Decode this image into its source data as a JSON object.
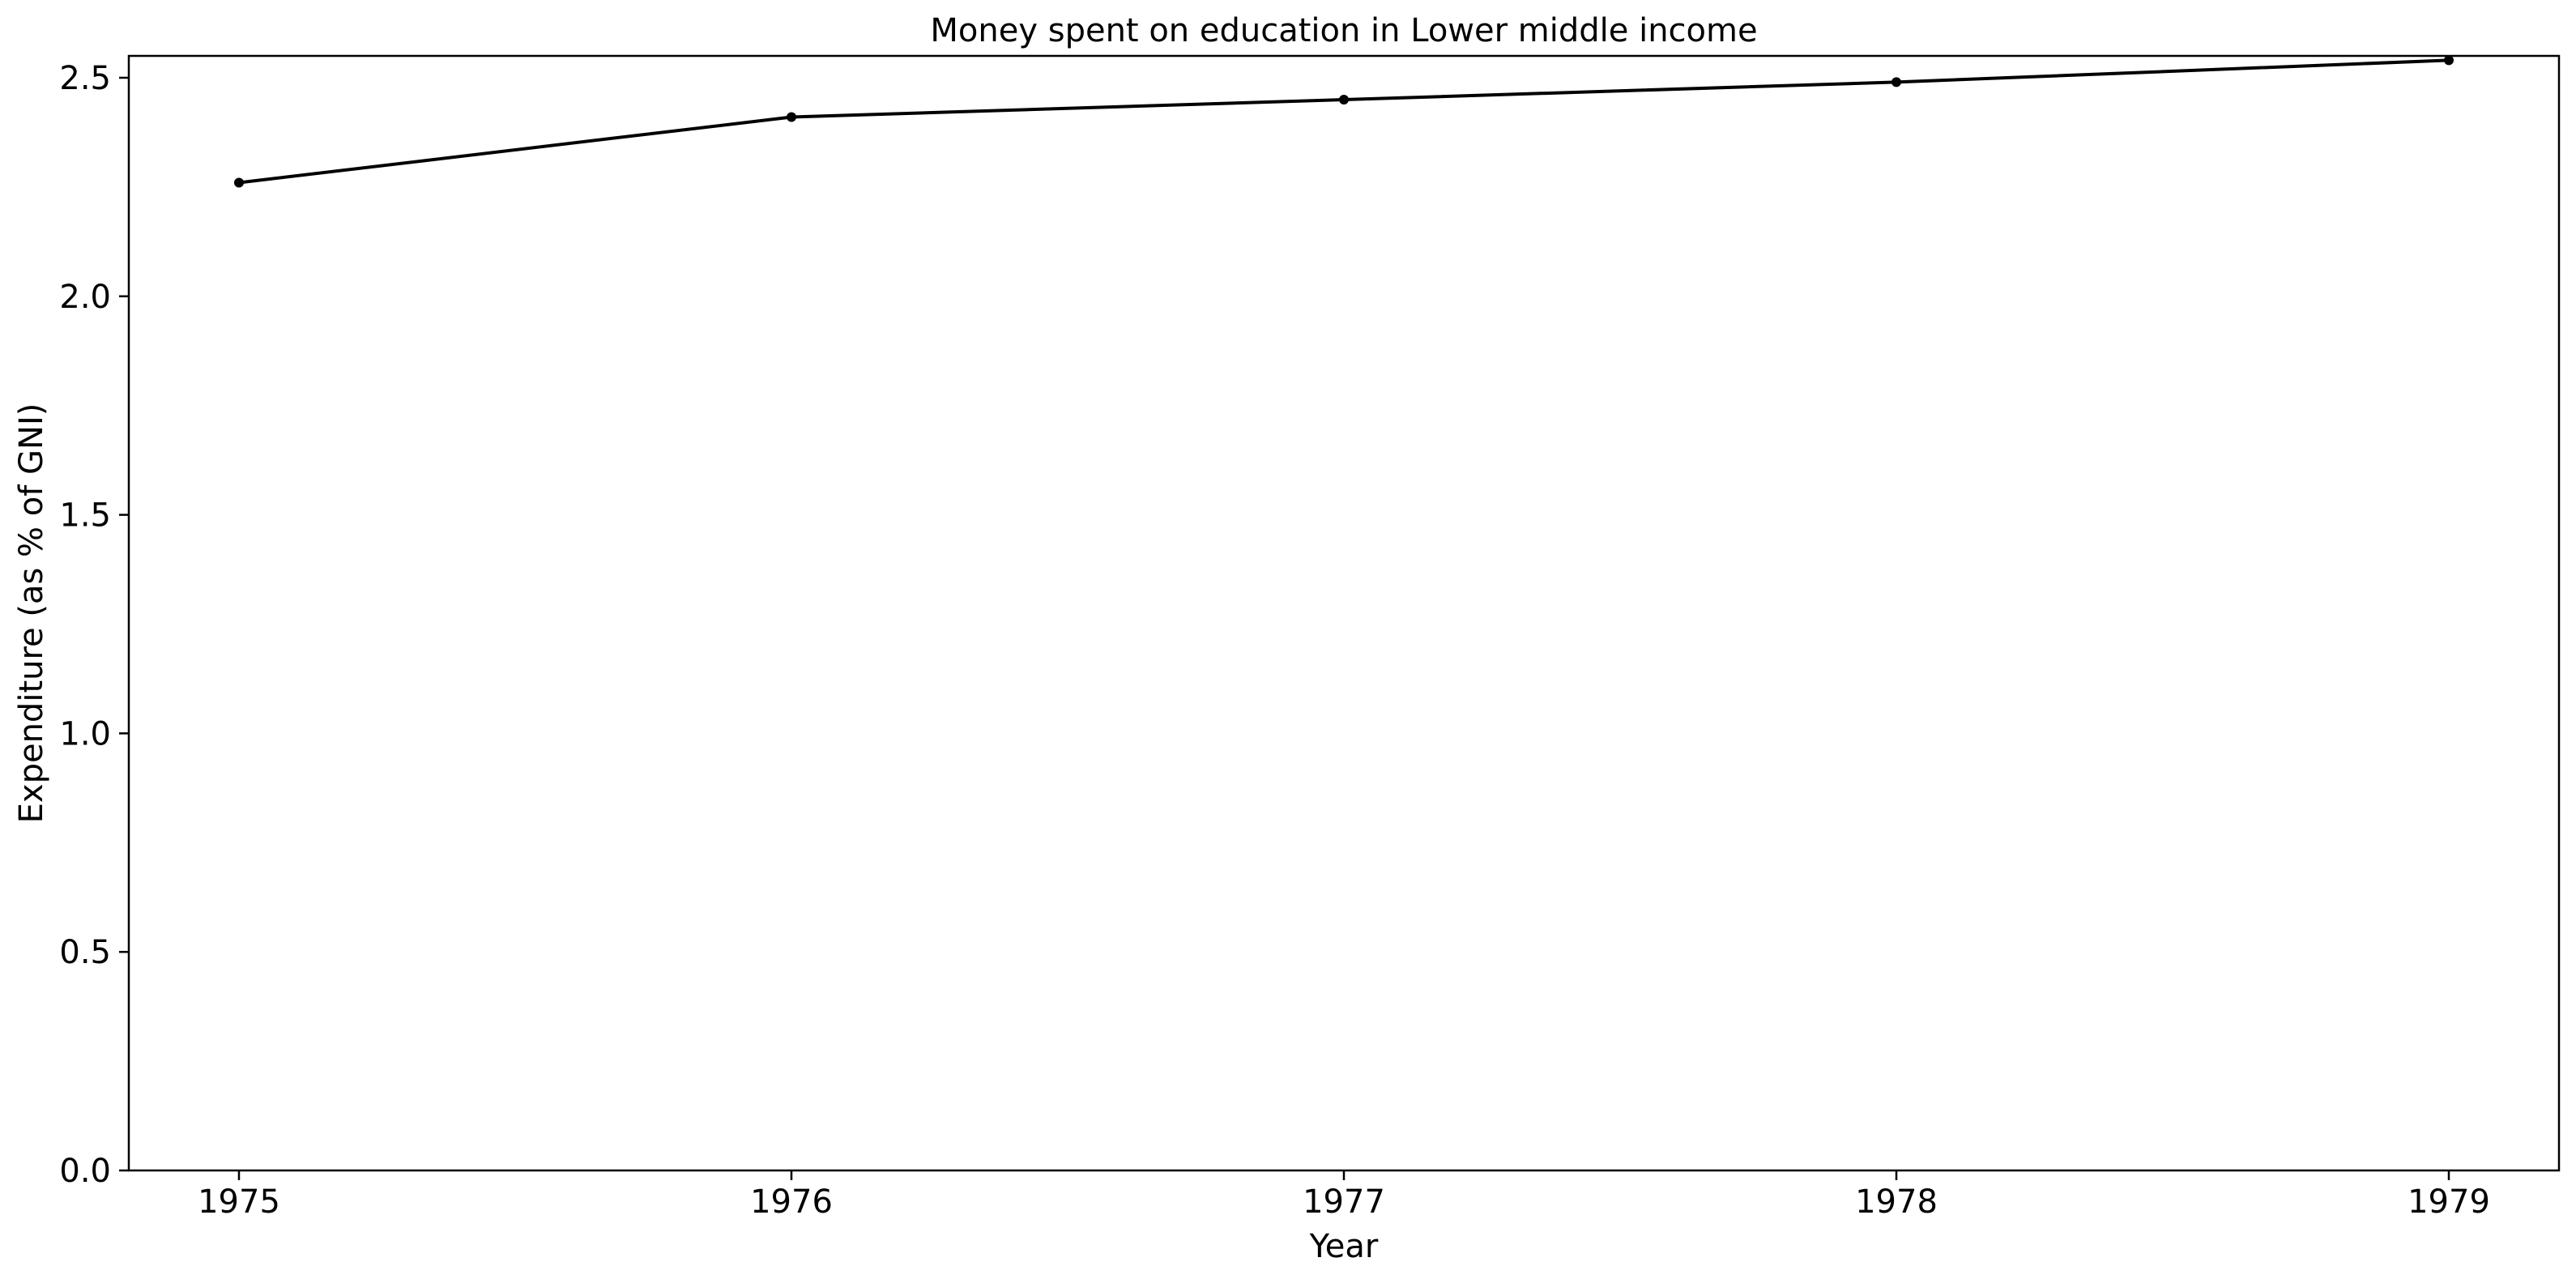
{
  "chart_data": {
    "type": "line",
    "title": "Money spent on education in Lower middle income",
    "xlabel": "Year",
    "ylabel": "Expenditure (as % of GNI)",
    "x": [
      "1975",
      "1976",
      "1977",
      "1978",
      "1979"
    ],
    "series": [
      {
        "values": [
          2.26,
          2.41,
          2.45,
          2.49,
          2.54
        ]
      }
    ],
    "ylim": [
      0,
      2.55
    ],
    "yticks": [
      "0.0",
      "0.5",
      "1.0",
      "1.5",
      "2.0",
      "2.5"
    ],
    "grid": false,
    "legend": "none",
    "colors": {
      "line": "#000000",
      "marker": "#000000",
      "axes": "#000000",
      "background": "#ffffff"
    }
  }
}
